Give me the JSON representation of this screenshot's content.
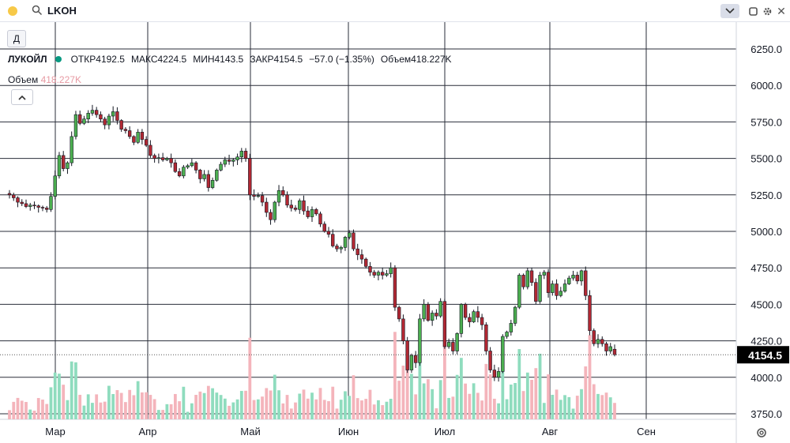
{
  "window": {
    "symbol_input": "LKOH",
    "period_button": "Д",
    "icons": {
      "status": "yellow-dot-icon",
      "search": "search-icon",
      "chevron": "chevron-down-icon",
      "square": "maximize-icon",
      "gear": "gear-icon",
      "close": "close-icon",
      "collapse": "chevron-up-icon",
      "settings": "settings-icon"
    },
    "close_glyph": "✕"
  },
  "legend": {
    "symbol": "ЛУКОЙЛ",
    "open_label": "ОТКР",
    "open_value": "4192.5",
    "high_label": "МАКС",
    "high_value": "4224.5",
    "low_label": "МИН",
    "low_value": "4143.5",
    "close_label": "ЗАКР",
    "close_value": "4154.5",
    "change": "−57.0 (−1.35%)",
    "volume_label": "Объем",
    "volume_value": "418.227K"
  },
  "volume_legend": {
    "label": "Объем",
    "value": "418.227K"
  },
  "colors": {
    "up": "#4caf50",
    "down": "#b22833",
    "vol_up": "#8fdcbe",
    "vol_down": "#f4b4bb",
    "last_price_bg": "#000000",
    "grid": "#2a2e39",
    "accent": "#089981"
  },
  "chart_data": {
    "type": "candlestick",
    "x_axis": {
      "labels": [
        "Мар",
        "Апр",
        "Май",
        "Июн",
        "Июл",
        "Авг",
        "Сен"
      ]
    },
    "y_axis": {
      "ticks": [
        "6250.0",
        "6000.0",
        "5750.0",
        "5500.0",
        "5250.0",
        "5000.0",
        "4750.0",
        "4500.0",
        "4250.0",
        "4000.0",
        "3750.0"
      ],
      "range": [
        3750,
        6300
      ]
    },
    "last_price": "4154.5",
    "grid": true,
    "series": [
      {
        "name": "ЛУКОЙЛ",
        "close": [
          5250,
          5230,
          5200,
          5190,
          5170,
          5180,
          5175,
          5165,
          5160,
          5150,
          5240,
          5380,
          5520,
          5430,
          5470,
          5650,
          5800,
          5740,
          5770,
          5810,
          5830,
          5800,
          5770,
          5730,
          5790,
          5820,
          5760,
          5700,
          5690,
          5650,
          5610,
          5680,
          5630,
          5590,
          5520,
          5500,
          5505,
          5490,
          5500,
          5470,
          5410,
          5380,
          5440,
          5450,
          5470,
          5420,
          5360,
          5390,
          5300,
          5350,
          5420,
          5460,
          5490,
          5480,
          5490,
          5510,
          5550,
          5500,
          5250,
          5240,
          5245,
          5200,
          5130,
          5080,
          5200,
          5280,
          5250,
          5180,
          5160,
          5150,
          5210,
          5140,
          5100,
          5150,
          5120,
          5050,
          5000,
          4980,
          4900,
          4880,
          4890,
          4960,
          4990,
          4880,
          4840,
          4810,
          4760,
          4720,
          4700,
          4720,
          4700,
          4710,
          4750,
          4480,
          4400,
          4250,
          4050,
          4150,
          4100,
          4400,
          4500,
          4390,
          4440,
          4420,
          4520,
          4210,
          4240,
          4180,
          4300,
          4500,
          4410,
          4380,
          4450,
          4410,
          4360,
          4180,
          4050,
          4000,
          4040,
          4280,
          4310,
          4370,
          4480,
          4700,
          4620,
          4730,
          4650,
          4520,
          4700,
          4720,
          4580,
          4640,
          4560,
          4590,
          4640,
          4680,
          4700,
          4660,
          4730,
          4560,
          4320,
          4230,
          4260,
          4230,
          4180,
          4210,
          4155
        ]
      }
    ]
  }
}
